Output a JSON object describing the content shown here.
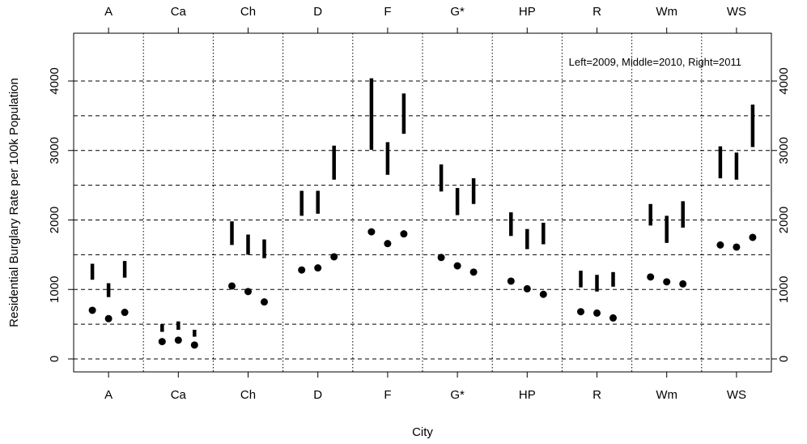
{
  "chart_data": {
    "type": "scatter",
    "annotation": "Left=2009, Middle=2010, Right=2011",
    "xlabel": "City",
    "ylabel": "Residential Burglary Rate per 100k Population",
    "categories": [
      "A",
      "Ca",
      "Ch",
      "D",
      "F",
      "G*",
      "HP",
      "R",
      "Wm",
      "WS"
    ],
    "years": [
      "2009",
      "2010",
      "2011"
    ],
    "ylim": [
      -100,
      4650
    ],
    "yticks": [
      0,
      1000,
      2000,
      3000,
      4000
    ],
    "gridlines_dashed": [
      0,
      500,
      1000,
      1500,
      2000,
      2500,
      3000,
      3500,
      4000
    ],
    "series": [
      {
        "kind": "points",
        "values": [
          [
            700,
            580,
            670
          ],
          [
            250,
            270,
            200
          ],
          [
            1050,
            970,
            820
          ],
          [
            1280,
            1310,
            1470
          ],
          [
            1830,
            1660,
            1800
          ],
          [
            1460,
            1340,
            1250
          ],
          [
            1120,
            1010,
            930
          ],
          [
            680,
            660,
            590
          ],
          [
            1180,
            1110,
            1080
          ],
          [
            1640,
            1610,
            1750
          ]
        ]
      },
      {
        "kind": "intervals",
        "values": [
          [
            [
              1140,
              1370
            ],
            [
              890,
              1090
            ],
            [
              1170,
              1410
            ]
          ],
          [
            [
              390,
              500
            ],
            [
              420,
              540
            ],
            [
              320,
              420
            ]
          ],
          [
            [
              1640,
              1980
            ],
            [
              1500,
              1790
            ],
            [
              1450,
              1720
            ]
          ],
          [
            [
              2060,
              2420
            ],
            [
              2090,
              2420
            ],
            [
              2580,
              3070
            ]
          ],
          [
            [
              3010,
              4040
            ],
            [
              2650,
              3120
            ],
            [
              3240,
              3820
            ]
          ],
          [
            [
              2410,
              2800
            ],
            [
              2070,
              2460
            ],
            [
              2230,
              2600
            ]
          ],
          [
            [
              1770,
              2110
            ],
            [
              1580,
              1870
            ],
            [
              1650,
              1960
            ]
          ],
          [
            [
              1030,
              1270
            ],
            [
              970,
              1210
            ],
            [
              1040,
              1250
            ]
          ],
          [
            [
              1920,
              2230
            ],
            [
              1670,
              2060
            ],
            [
              1890,
              2270
            ]
          ],
          [
            [
              2600,
              3060
            ],
            [
              2580,
              2970
            ],
            [
              3050,
              3660
            ]
          ]
        ]
      }
    ]
  }
}
